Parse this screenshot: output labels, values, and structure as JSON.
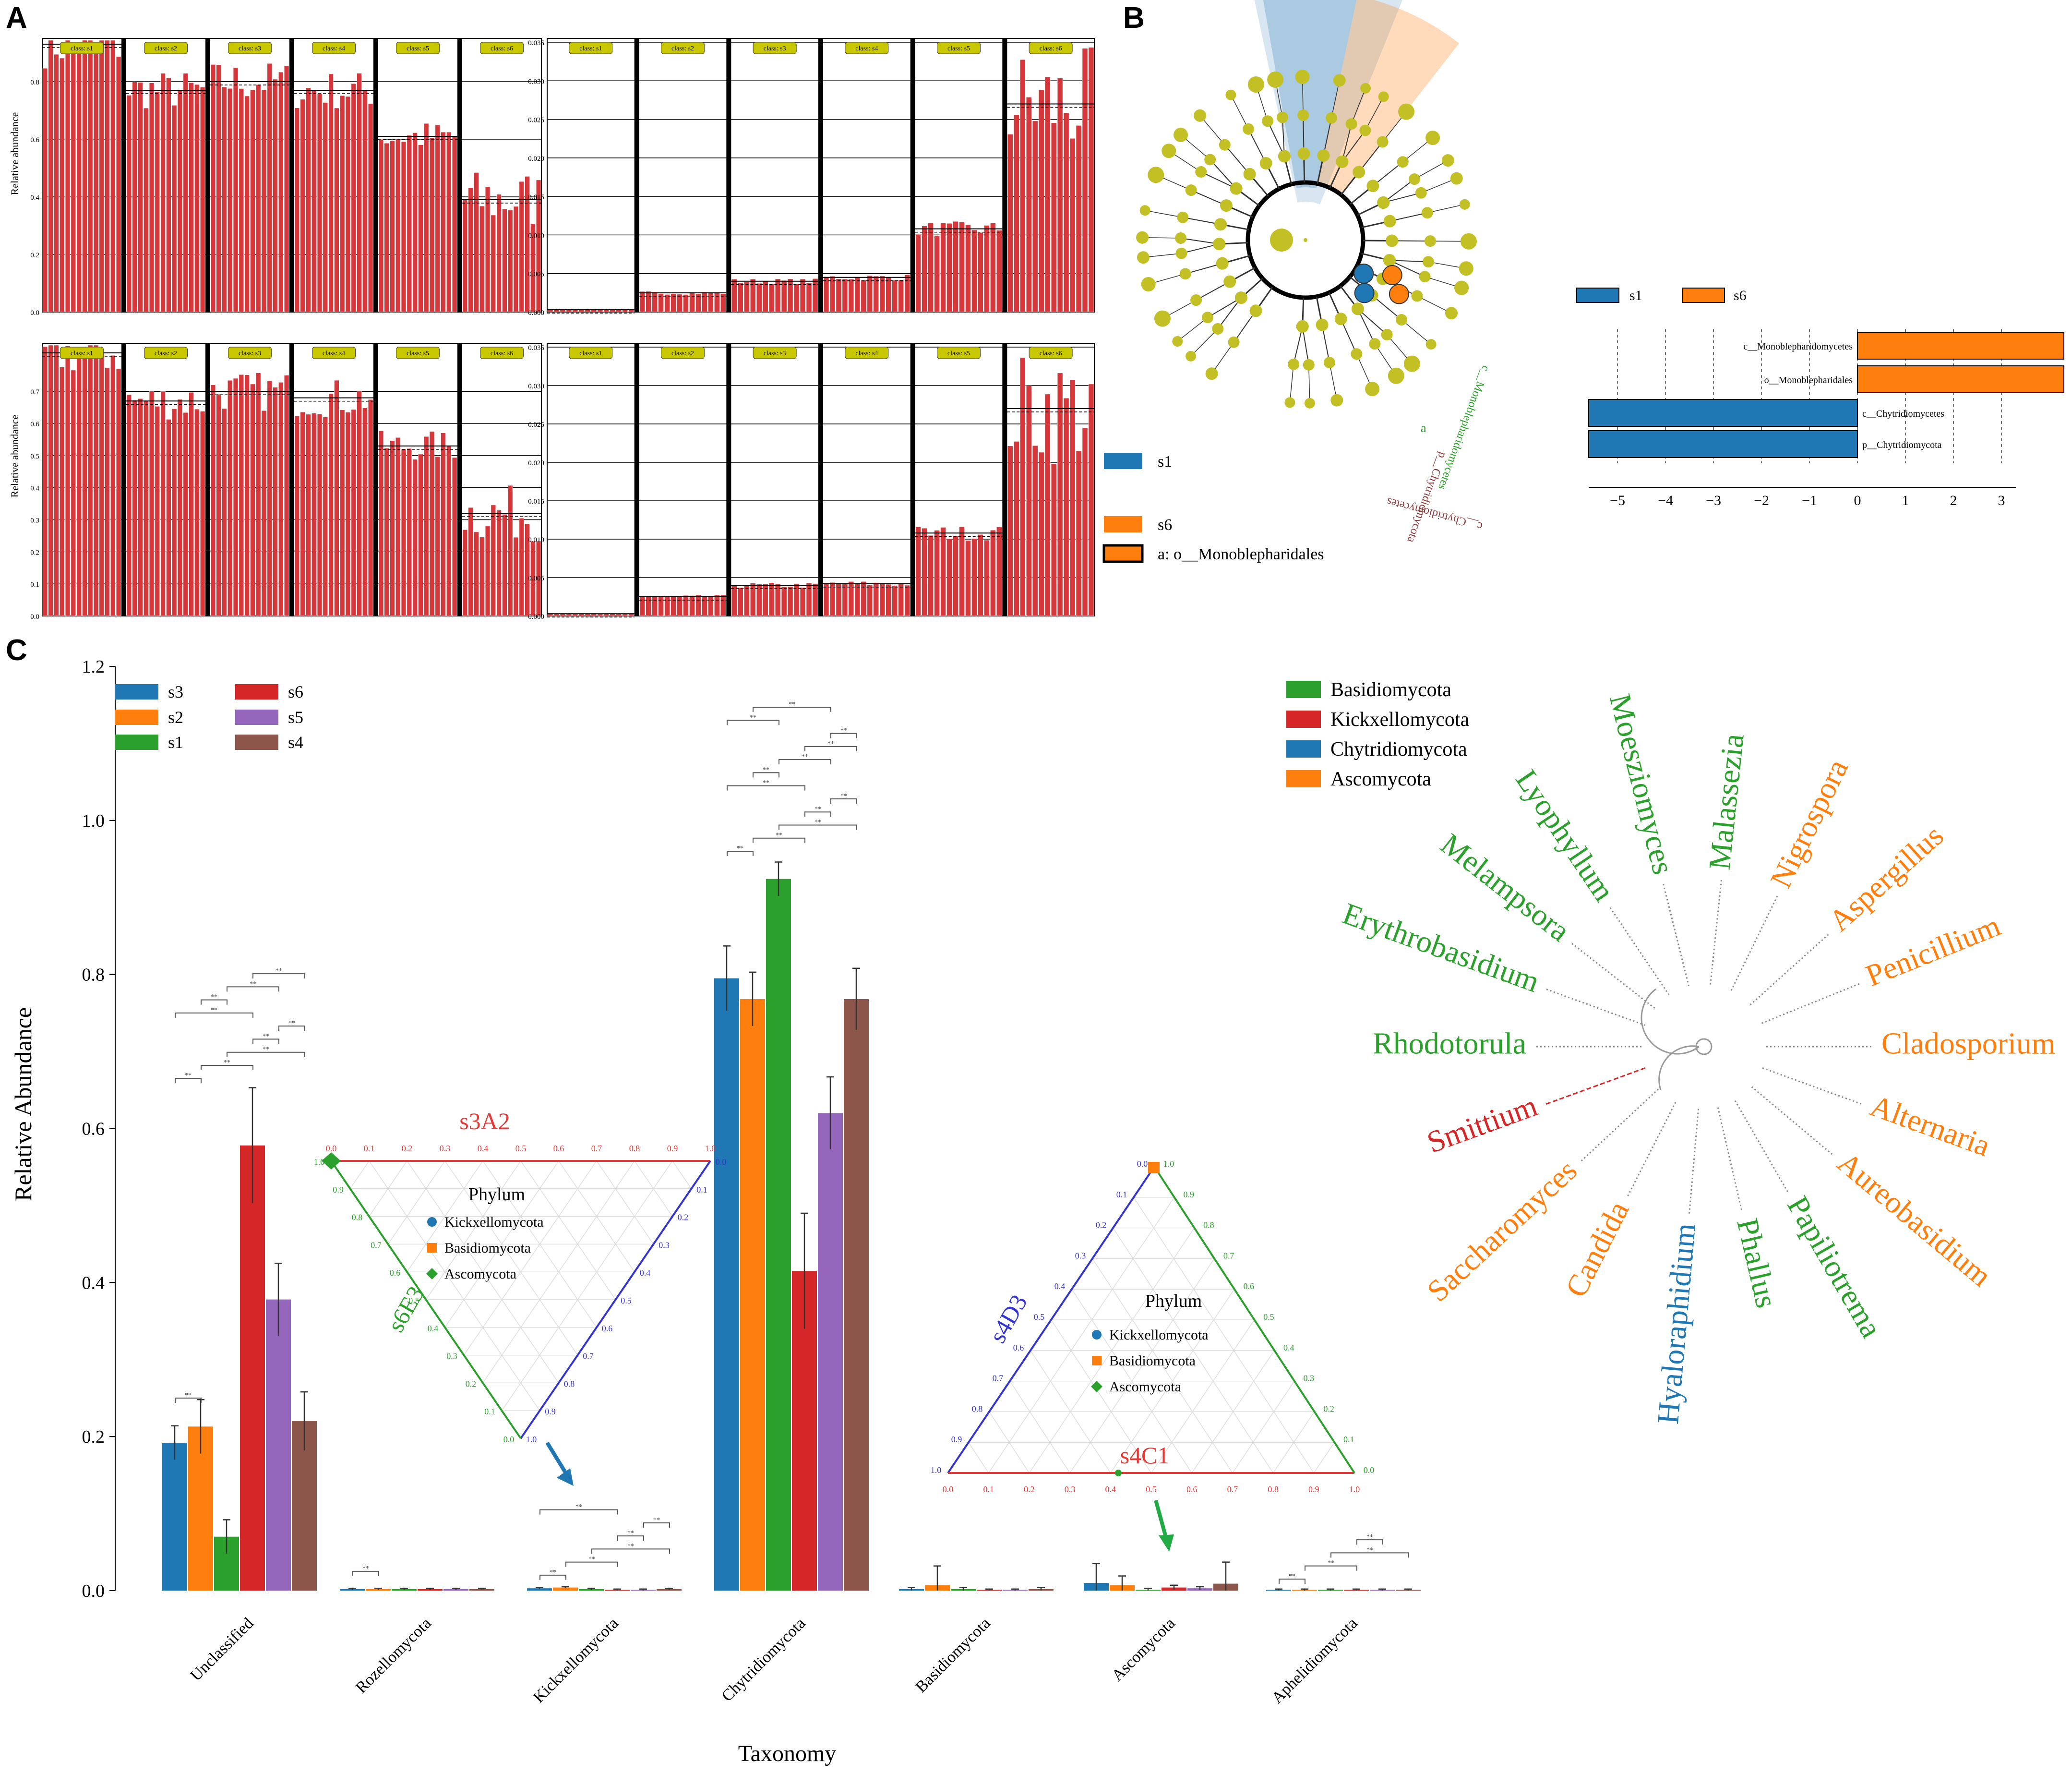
{
  "panel_letters": [
    "A",
    "B",
    "C"
  ],
  "colors": {
    "bar_red": "#d6373b",
    "tag_yellow": "#c9c800",
    "node_yellow": "#c3c026",
    "s1_blue": "#1f77b4",
    "s6_orange": "#ff7f0e",
    "s3": "#1f77b4",
    "s2": "#ff7f0e",
    "s1": "#2ca02c",
    "s6": "#d62728",
    "s5": "#9467bd",
    "s4": "#8c564b",
    "basidio": "#2ca02c",
    "kickx": "#d62728",
    "chytrid": "#1f77b4",
    "asco": "#ff7f0e"
  },
  "panel_a": {
    "ylabel": "Relative abundance",
    "class_tags": [
      "class: s1",
      "class: s2",
      "class: s3",
      "class: s4",
      "class: s5",
      "class: s6"
    ],
    "plots": [
      {
        "yticks": [
          "0.0",
          "0.2",
          "0.4",
          "0.6",
          "0.8"
        ],
        "ymax": 0.95,
        "means": [
          0.93,
          0.77,
          0.8,
          0.77,
          0.61,
          0.39
        ]
      },
      {
        "yticks": [
          "0.000",
          "0.005",
          "0.010",
          "0.015",
          "0.020",
          "0.025",
          "0.030",
          "0.035"
        ],
        "ymax": 0.0355,
        "means": [
          0.0003,
          0.0025,
          0.004,
          0.0045,
          0.0108,
          0.027
        ]
      },
      {
        "yticks": [
          "0.0",
          "0.1",
          "0.2",
          "0.3",
          "0.4",
          "0.5",
          "0.6",
          "0.7"
        ],
        "ymax": 0.85,
        "means": [
          0.82,
          0.67,
          0.7,
          0.68,
          0.53,
          0.32
        ]
      },
      {
        "yticks": [
          "0.000",
          "0.005",
          "0.010",
          "0.015",
          "0.020",
          "0.025",
          "0.030",
          "0.035"
        ],
        "ymax": 0.0355,
        "means": [
          0.0003,
          0.0025,
          0.004,
          0.0042,
          0.0108,
          0.027
        ]
      }
    ]
  },
  "panel_b": {
    "legend": [
      "s1",
      "s6",
      "a: o__Monoblepharidales"
    ],
    "clade_labels": [
      "c__Monoblepharidomycetes",
      "p__Chytridiomycota",
      "c__Chytridiomycetes",
      "a"
    ],
    "lda_legend": [
      "s1",
      "s6"
    ],
    "lda_bars": [
      {
        "label": "c__Monoblepharidomycetes",
        "group": "s6",
        "value": 4.3
      },
      {
        "label": "o__Monoblepharidales",
        "group": "s6",
        "value": 4.3
      },
      {
        "label": "c__Chytridiomycetes",
        "group": "s1",
        "value": -5.6
      },
      {
        "label": "p__Chytridiomycota",
        "group": "s1",
        "value": -5.6
      }
    ],
    "lda_ticks": [
      "−5",
      "−4",
      "−3",
      "−2",
      "−1",
      "0",
      "1",
      "2",
      "3"
    ]
  },
  "chart_data": {
    "type": "bar",
    "title": "",
    "xlabel": "Taxonomy",
    "ylabel": "Relative Abundance",
    "ylim": [
      0,
      1.2
    ],
    "yticks": [
      "0.0",
      "0.2",
      "0.4",
      "0.6",
      "0.8",
      "1.0",
      "1.2"
    ],
    "categories": [
      "Unclassified",
      "Rozellomycota",
      "Kickxellomycota",
      "Chytridiomycota",
      "Basidiomycota",
      "Ascomycota",
      "Aphelidiomycota"
    ],
    "series": [
      {
        "name": "s3",
        "values": [
          0.192,
          0.002,
          0.003,
          0.795,
          0.002,
          0.01,
          0.001
        ],
        "errors": [
          0.022,
          0.001,
          0.001,
          0.042,
          0.002,
          0.025,
          0.001
        ]
      },
      {
        "name": "s2",
        "values": [
          0.213,
          0.002,
          0.004,
          0.768,
          0.007,
          0.007,
          0.001
        ],
        "errors": [
          0.035,
          0.001,
          0.001,
          0.035,
          0.025,
          0.012,
          0.001
        ]
      },
      {
        "name": "s1",
        "values": [
          0.07,
          0.002,
          0.002,
          0.924,
          0.002,
          0.001,
          0.001
        ],
        "errors": [
          0.022,
          0.001,
          0.001,
          0.022,
          0.002,
          0.002,
          0.001
        ]
      },
      {
        "name": "s6",
        "values": [
          0.578,
          0.002,
          0.001,
          0.415,
          0.001,
          0.004,
          0.001
        ],
        "errors": [
          0.075,
          0.001,
          0.001,
          0.075,
          0.001,
          0.003,
          0.001
        ]
      },
      {
        "name": "s5",
        "values": [
          0.378,
          0.002,
          0.001,
          0.62,
          0.001,
          0.003,
          0.001
        ],
        "errors": [
          0.047,
          0.001,
          0.001,
          0.047,
          0.001,
          0.002,
          0.001
        ]
      },
      {
        "name": "s4",
        "values": [
          0.22,
          0.002,
          0.002,
          0.768,
          0.002,
          0.009,
          0.001
        ],
        "errors": [
          0.038,
          0.001,
          0.001,
          0.04,
          0.002,
          0.028,
          0.001
        ]
      }
    ],
    "legend_order": [
      "s3",
      "s6",
      "s2",
      "s5",
      "s1",
      "s4"
    ],
    "sig_mark": "**"
  },
  "ternary_1": {
    "title": "Phylum",
    "top_label": "s3A2",
    "left_label": "s6E3",
    "ticks": [
      "0.0",
      "0.1",
      "0.2",
      "0.3",
      "0.4",
      "0.5",
      "0.6",
      "0.7",
      "0.8",
      "0.9",
      "1.0"
    ],
    "legend": [
      "Kickxellomycota",
      "Basidiomycota",
      "Ascomycota"
    ]
  },
  "ternary_2": {
    "title": "Phylum",
    "left_label": "s4D3",
    "bottom_label": "s4C1",
    "ticks": [
      "0.0",
      "0.1",
      "0.2",
      "0.3",
      "0.4",
      "0.5",
      "0.6",
      "0.7",
      "0.8",
      "0.9",
      "1.0"
    ],
    "legend": [
      "Kickxellomycota",
      "Basidiomycota",
      "Ascomycota"
    ]
  },
  "tree": {
    "legend": [
      {
        "label": "Basidiomycota",
        "color": "#2ca02c"
      },
      {
        "label": "Kickxellomycota",
        "color": "#d62728"
      },
      {
        "label": "Chytridiomycota",
        "color": "#1f77b4"
      },
      {
        "label": "Ascomycota",
        "color": "#ff7f0e"
      }
    ],
    "leaves": [
      {
        "label": "Rhodotorula",
        "color": "#2ca02c",
        "angle": 180
      },
      {
        "label": "Erythrobasidium",
        "color": "#2ca02c",
        "angle": 160
      },
      {
        "label": "Melampsora",
        "color": "#2ca02c",
        "angle": 142
      },
      {
        "label": "Lyophyllum",
        "color": "#2ca02c",
        "angle": 124
      },
      {
        "label": "Moesziomyces",
        "color": "#2ca02c",
        "angle": 104
      },
      {
        "label": "Malassezia",
        "color": "#2ca02c",
        "angle": 84
      },
      {
        "label": "Nigrospora",
        "color": "#ff7f0e",
        "angle": 64
      },
      {
        "label": "Aspergillus",
        "color": "#ff7f0e",
        "angle": 42
      },
      {
        "label": "Penicillium",
        "color": "#ff7f0e",
        "angle": 22
      },
      {
        "label": "Cladosporium",
        "color": "#ff7f0e",
        "angle": 0
      },
      {
        "label": "Alternaria",
        "color": "#ff7f0e",
        "angle": -20
      },
      {
        "label": "Aureobasidium",
        "color": "#ff7f0e",
        "angle": -40
      },
      {
        "label": "Papiliotrema",
        "color": "#2ca02c",
        "angle": -60
      },
      {
        "label": "Phallus",
        "color": "#2ca02c",
        "angle": -77
      },
      {
        "label": "Hyaloraphidium",
        "color": "#1f77b4",
        "angle": -95
      },
      {
        "label": "Candida",
        "color": "#ff7f0e",
        "angle": -117
      },
      {
        "label": "Saccharomyces",
        "color": "#ff7f0e",
        "angle": -137
      },
      {
        "label": "Smittium",
        "color": "#d62728",
        "angle": -160
      }
    ]
  }
}
